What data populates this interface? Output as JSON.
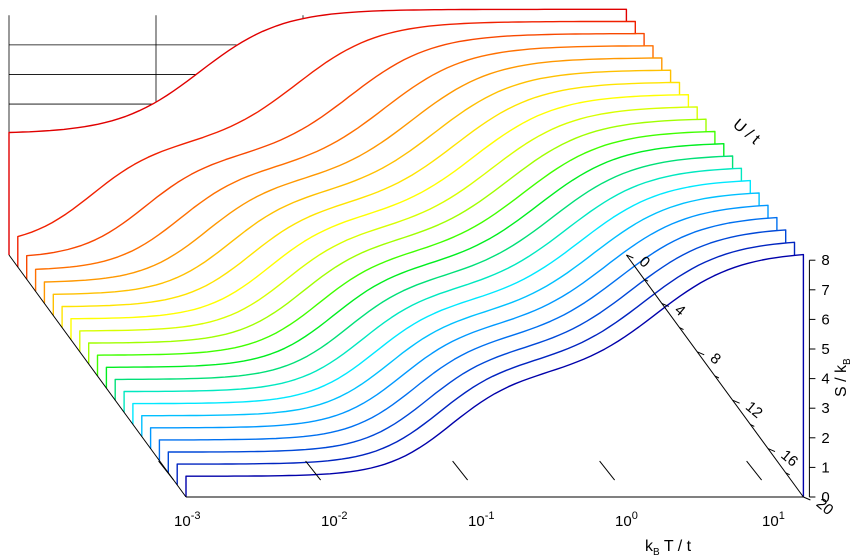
{
  "chart_data": {
    "type": "line",
    "title": "",
    "xlabel_parts": {
      "k": "k",
      "k_sub": "B",
      "rest": " T / t"
    },
    "ylabel": "U / t",
    "zlabel_parts": {
      "main": "S / k",
      "sub": "B"
    },
    "x_scale": "log",
    "x_ticks": [
      {
        "base": "10",
        "exp": "-3"
      },
      {
        "base": "10",
        "exp": "-2"
      },
      {
        "base": "10",
        "exp": "-1"
      },
      {
        "base": "10",
        "exp": "0"
      },
      {
        "base": "10",
        "exp": "1"
      }
    ],
    "xlim_log10": [
      -3,
      1.2
    ],
    "y_ticks": [
      "0",
      "4",
      "8",
      "12",
      "16",
      "20"
    ],
    "ylim": [
      0,
      20
    ],
    "z_ticks": [
      "0",
      "1",
      "2",
      "3",
      "4",
      "5",
      "6",
      "7",
      "8"
    ],
    "zlim": [
      0,
      8
    ],
    "grid": true,
    "series_U": [
      0,
      1,
      2,
      3,
      4,
      5,
      6,
      7,
      8,
      9,
      10,
      11,
      12,
      13,
      14,
      15,
      16,
      17,
      18,
      19,
      20
    ],
    "series_colors": [
      "#e00000",
      "#f02000",
      "#f84800",
      "#ff7000",
      "#ff9800",
      "#ffc000",
      "#ffe400",
      "#ffff00",
      "#d8ff00",
      "#a0ff00",
      "#40ff00",
      "#00ee20",
      "#00e078",
      "#00e8c0",
      "#00e8ff",
      "#00c0ff",
      "#0098ff",
      "#0070f0",
      "#0048d8",
      "#0024c0",
      "#0000aa"
    ],
    "entropy_model": {
      "description_hidden": false,
      "low_T_plateau": 0.7,
      "mid_plateau": 4.1,
      "high_T_limit": 8.3
    }
  }
}
